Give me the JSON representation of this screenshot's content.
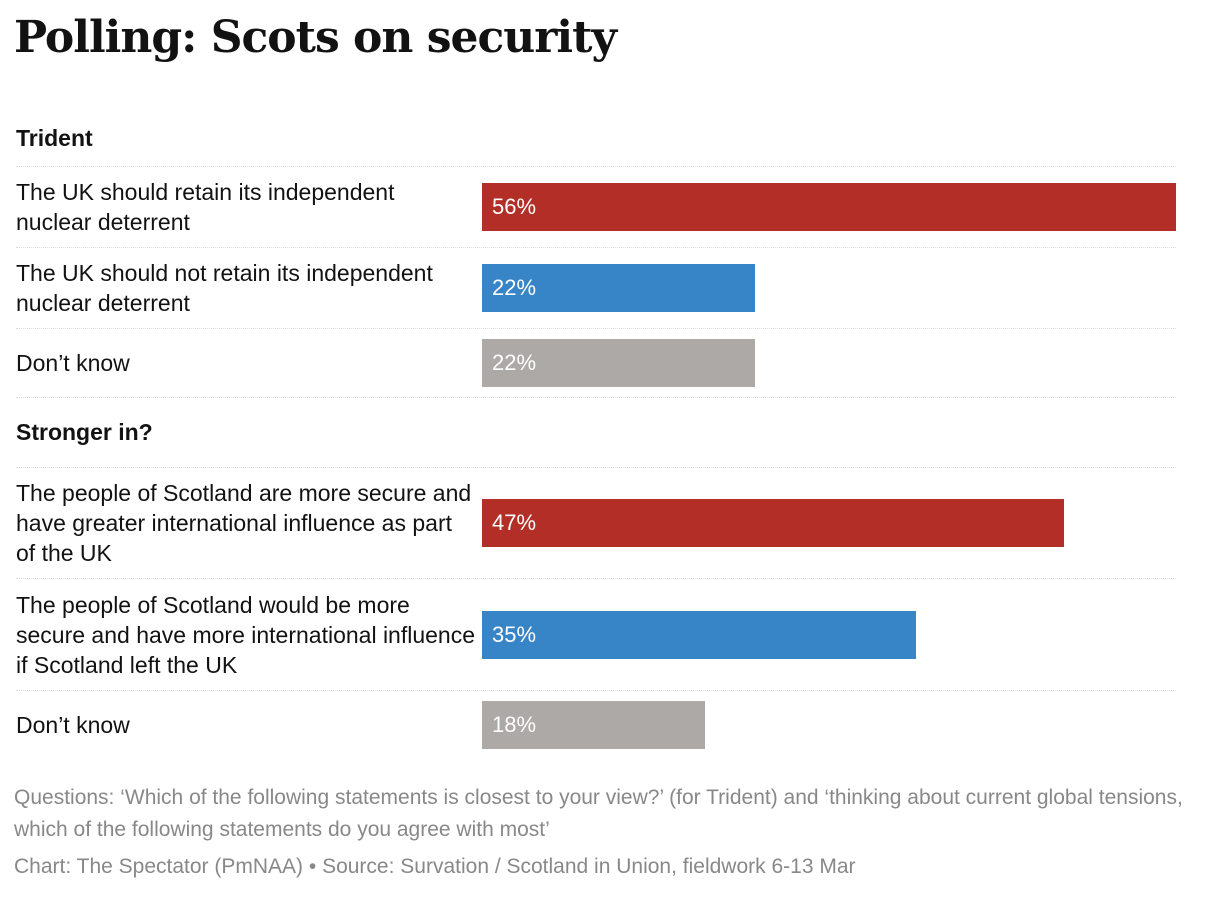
{
  "title": "Polling: Scots on security",
  "chart_data": {
    "type": "bar",
    "orientation": "horizontal",
    "xlim": [
      0,
      56
    ],
    "colors": {
      "red": "#b22e27",
      "blue": "#3784c7",
      "grey": "#aca9a6"
    },
    "groups": [
      {
        "heading": "Trident",
        "rows": [
          {
            "label": "The UK should retain its independent nuclear deterrent",
            "value": 56,
            "display": "56%",
            "color": "red"
          },
          {
            "label": "The UK should not retain its independent nuclear deterrent",
            "value": 22,
            "display": "22%",
            "color": "blue"
          },
          {
            "label": "Don’t know",
            "value": 22,
            "display": "22%",
            "color": "grey"
          }
        ]
      },
      {
        "heading": "Stronger in?",
        "rows": [
          {
            "label": "The people of Scotland are more secure and have greater international influence as part of the UK",
            "value": 47,
            "display": "47%",
            "color": "red"
          },
          {
            "label": "The people of Scotland would be more secure and have more international influence if Scotland left the UK",
            "value": 35,
            "display": "35%",
            "color": "blue"
          },
          {
            "label": "Don’t know",
            "value": 18,
            "display": "18%",
            "color": "grey"
          }
        ]
      }
    ]
  },
  "notes": "Questions: ‘Which of the following statements is closest to your view?’ (for Trident) and ‘thinking about current global tensions, which of the following statements do you agree with most’",
  "source": "Chart: The Spectator (PmNAA) • Source: Survation / Scotland in Union, fieldwork 6-13 Mar"
}
